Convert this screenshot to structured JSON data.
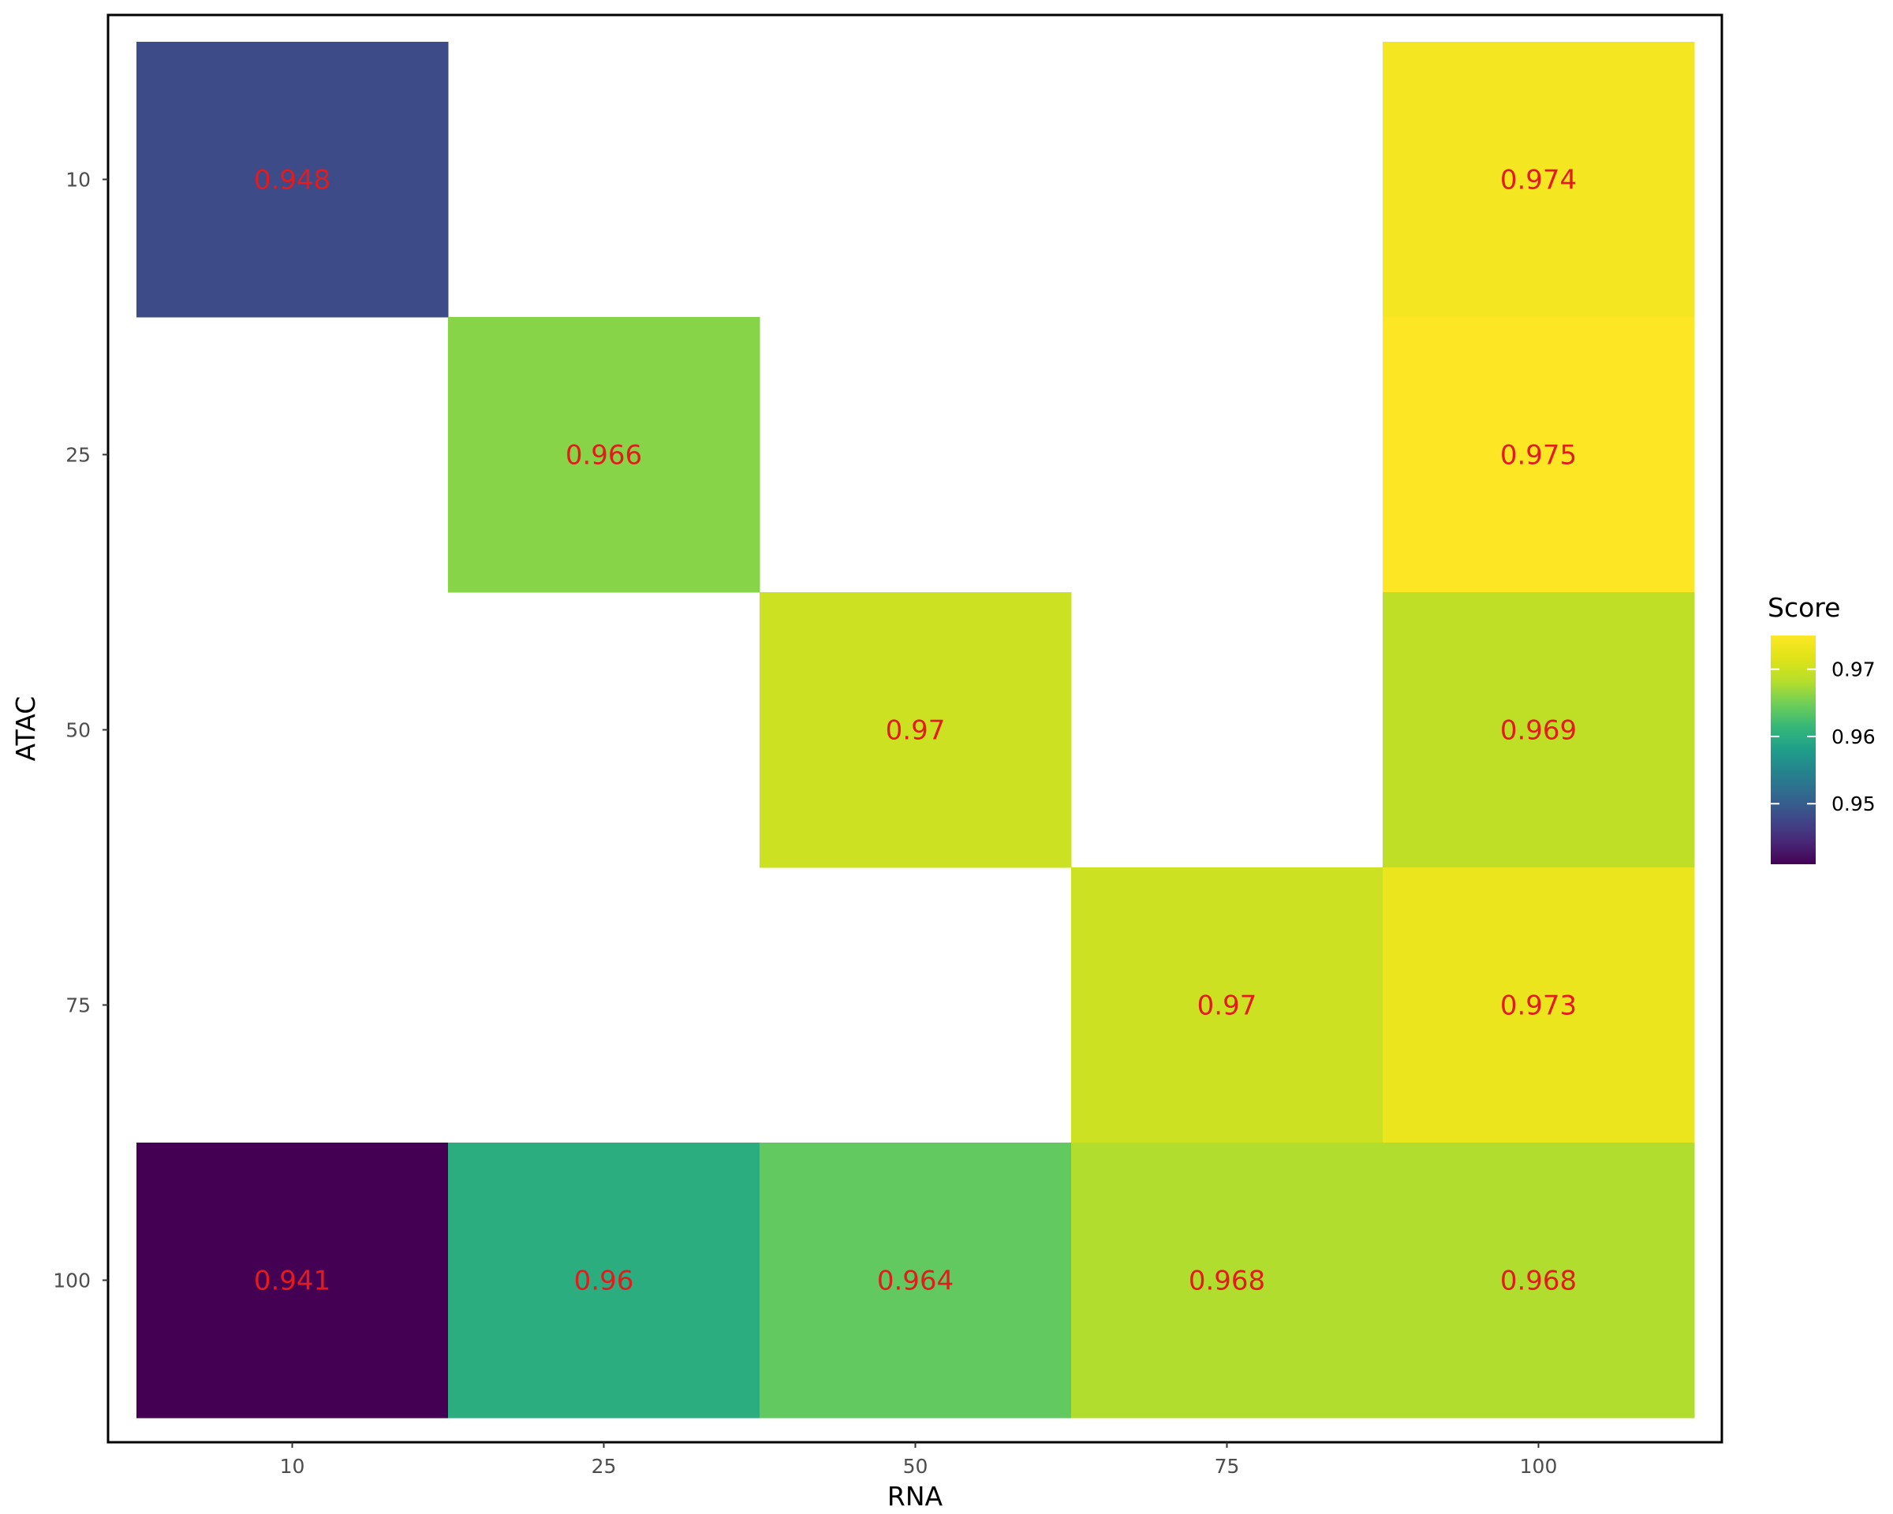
{
  "chart_data": {
    "type": "heatmap",
    "xlabel": "RNA",
    "ylabel": "ATAC",
    "x_categories": [
      "10",
      "25",
      "50",
      "75",
      "100"
    ],
    "y_categories": [
      "10",
      "25",
      "50",
      "75",
      "100"
    ],
    "cells": [
      {
        "x": "10",
        "y": "10",
        "value": 0.948,
        "label": "0.948"
      },
      {
        "x": "100",
        "y": "10",
        "value": 0.974,
        "label": "0.974"
      },
      {
        "x": "25",
        "y": "25",
        "value": 0.966,
        "label": "0.966"
      },
      {
        "x": "100",
        "y": "25",
        "value": 0.975,
        "label": "0.975"
      },
      {
        "x": "50",
        "y": "50",
        "value": 0.97,
        "label": "0.97"
      },
      {
        "x": "100",
        "y": "50",
        "value": 0.969,
        "label": "0.969"
      },
      {
        "x": "75",
        "y": "75",
        "value": 0.97,
        "label": "0.97"
      },
      {
        "x": "100",
        "y": "75",
        "value": 0.973,
        "label": "0.973"
      },
      {
        "x": "10",
        "y": "100",
        "value": 0.941,
        "label": "0.941"
      },
      {
        "x": "25",
        "y": "100",
        "value": 0.96,
        "label": "0.96"
      },
      {
        "x": "50",
        "y": "100",
        "value": 0.964,
        "label": "0.964"
      },
      {
        "x": "75",
        "y": "100",
        "value": 0.968,
        "label": "0.968"
      },
      {
        "x": "100",
        "y": "100",
        "value": 0.968,
        "label": "0.968"
      }
    ],
    "legend": {
      "title": "Score",
      "ticks": [
        {
          "value": 0.95,
          "label": "0.95"
        },
        {
          "value": 0.96,
          "label": "0.96"
        },
        {
          "value": 0.97,
          "label": "0.97"
        }
      ],
      "range": [
        0.941,
        0.975
      ],
      "placement": "right"
    },
    "colormap": "viridis",
    "cell_label_color": "#e41a1c",
    "missing_cells": "blank",
    "grid": false,
    "panel_border": true
  }
}
